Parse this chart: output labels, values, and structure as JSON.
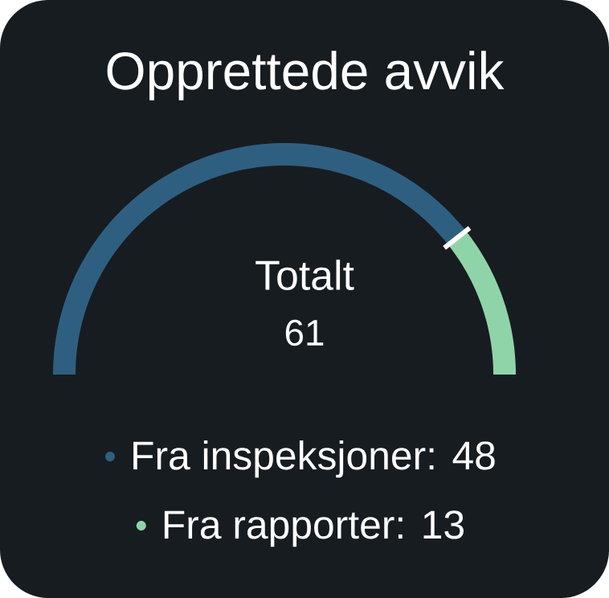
{
  "chart_data": {
    "type": "donut",
    "title": "Opprettede avvik",
    "categories": [
      "Fra inspeksjoner: 48",
      "Fra rapporter: 13"
    ],
    "values": [
      48,
      13
    ],
    "colors": [
      "#2f5f80",
      "#8fd4a9"
    ],
    "legend": "bottom",
    "annotations": [
      "Totalt",
      "61"
    ]
  }
}
